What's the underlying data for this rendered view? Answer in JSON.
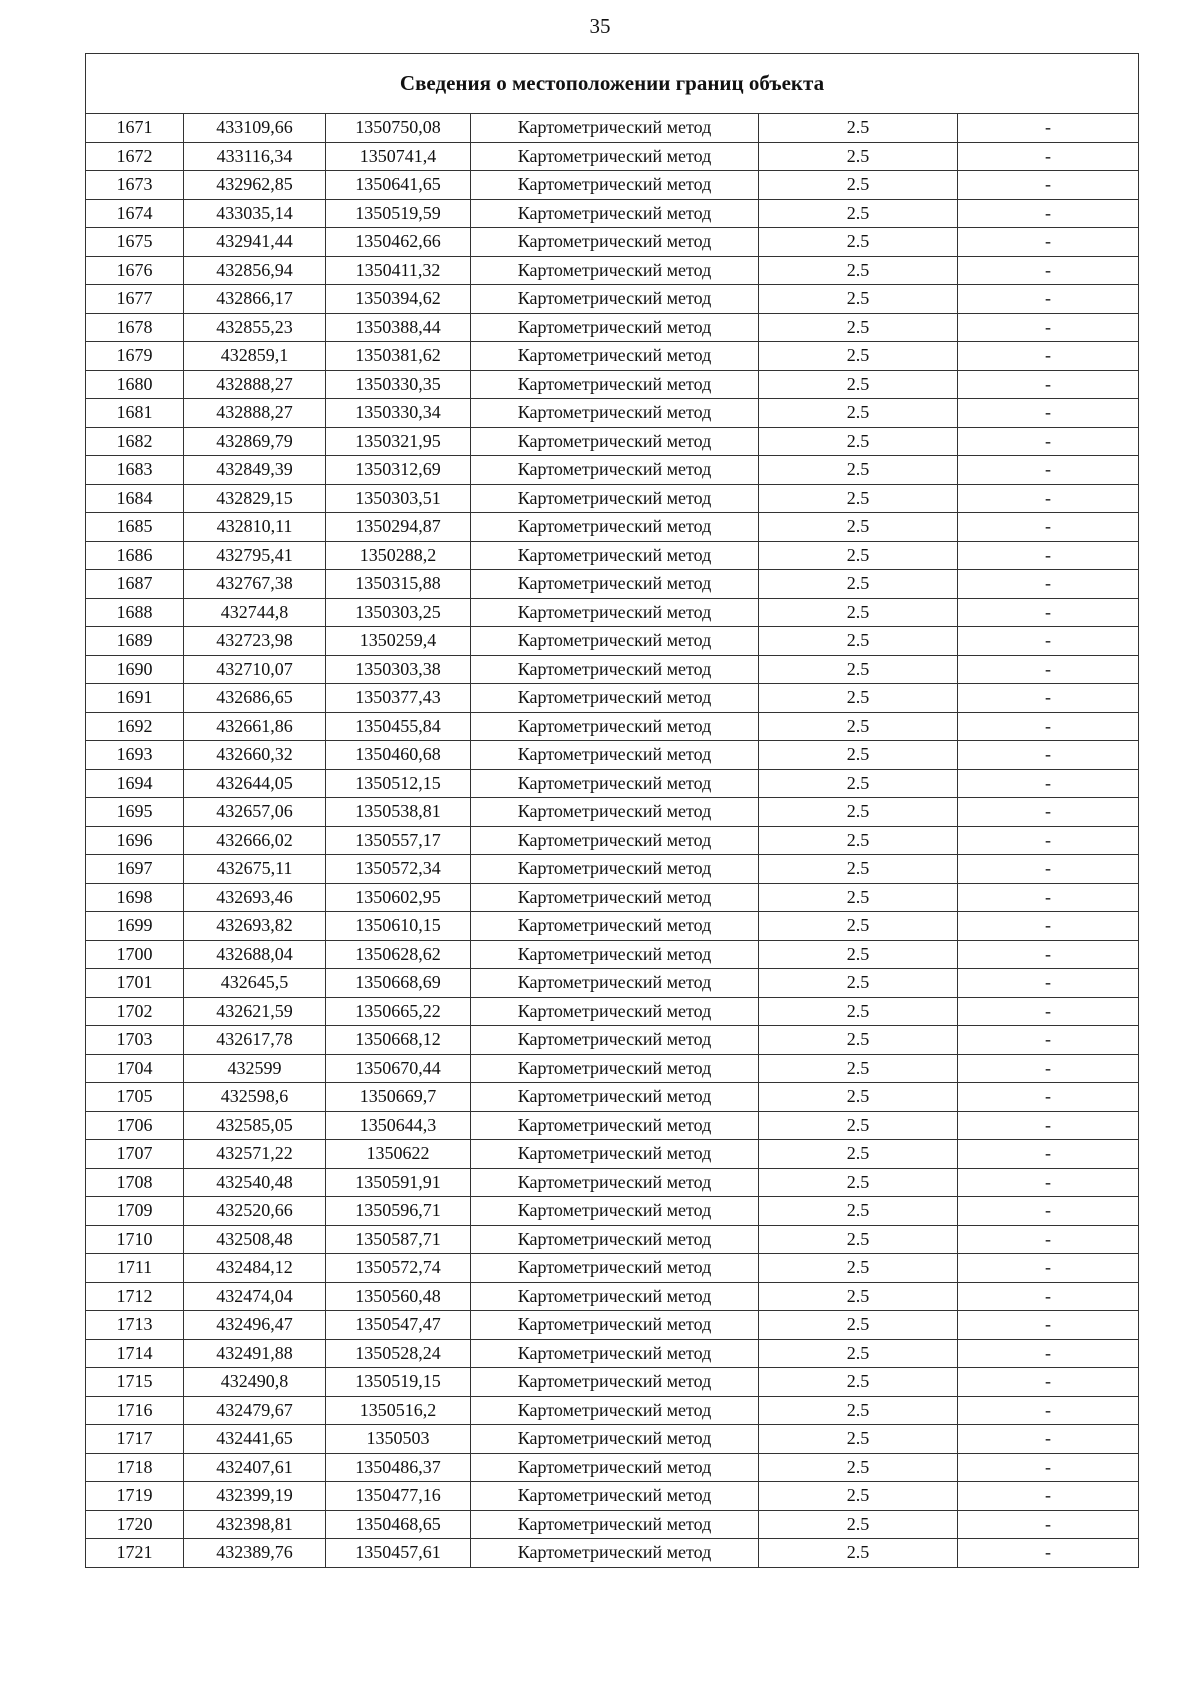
{
  "page_number": "35",
  "table": {
    "title": "Сведения о местоположении границ объекта",
    "rows": [
      [
        "1671",
        "433109,66",
        "1350750,08",
        "Картометрический метод",
        "2.5",
        "-"
      ],
      [
        "1672",
        "433116,34",
        "1350741,4",
        "Картометрический метод",
        "2.5",
        "-"
      ],
      [
        "1673",
        "432962,85",
        "1350641,65",
        "Картометрический метод",
        "2.5",
        "-"
      ],
      [
        "1674",
        "433035,14",
        "1350519,59",
        "Картометрический метод",
        "2.5",
        "-"
      ],
      [
        "1675",
        "432941,44",
        "1350462,66",
        "Картометрический метод",
        "2.5",
        "-"
      ],
      [
        "1676",
        "432856,94",
        "1350411,32",
        "Картометрический метод",
        "2.5",
        "-"
      ],
      [
        "1677",
        "432866,17",
        "1350394,62",
        "Картометрический метод",
        "2.5",
        "-"
      ],
      [
        "1678",
        "432855,23",
        "1350388,44",
        "Картометрический метод",
        "2.5",
        "-"
      ],
      [
        "1679",
        "432859,1",
        "1350381,62",
        "Картометрический метод",
        "2.5",
        "-"
      ],
      [
        "1680",
        "432888,27",
        "1350330,35",
        "Картометрический метод",
        "2.5",
        "-"
      ],
      [
        "1681",
        "432888,27",
        "1350330,34",
        "Картометрический метод",
        "2.5",
        "-"
      ],
      [
        "1682",
        "432869,79",
        "1350321,95",
        "Картометрический метод",
        "2.5",
        "-"
      ],
      [
        "1683",
        "432849,39",
        "1350312,69",
        "Картометрический метод",
        "2.5",
        "-"
      ],
      [
        "1684",
        "432829,15",
        "1350303,51",
        "Картометрический метод",
        "2.5",
        "-"
      ],
      [
        "1685",
        "432810,11",
        "1350294,87",
        "Картометрический метод",
        "2.5",
        "-"
      ],
      [
        "1686",
        "432795,41",
        "1350288,2",
        "Картометрический метод",
        "2.5",
        "-"
      ],
      [
        "1687",
        "432767,38",
        "1350315,88",
        "Картометрический метод",
        "2.5",
        "-"
      ],
      [
        "1688",
        "432744,8",
        "1350303,25",
        "Картометрический метод",
        "2.5",
        "-"
      ],
      [
        "1689",
        "432723,98",
        "1350259,4",
        "Картометрический метод",
        "2.5",
        "-"
      ],
      [
        "1690",
        "432710,07",
        "1350303,38",
        "Картометрический метод",
        "2.5",
        "-"
      ],
      [
        "1691",
        "432686,65",
        "1350377,43",
        "Картометрический метод",
        "2.5",
        "-"
      ],
      [
        "1692",
        "432661,86",
        "1350455,84",
        "Картометрический метод",
        "2.5",
        "-"
      ],
      [
        "1693",
        "432660,32",
        "1350460,68",
        "Картометрический метод",
        "2.5",
        "-"
      ],
      [
        "1694",
        "432644,05",
        "1350512,15",
        "Картометрический метод",
        "2.5",
        "-"
      ],
      [
        "1695",
        "432657,06",
        "1350538,81",
        "Картометрический метод",
        "2.5",
        "-"
      ],
      [
        "1696",
        "432666,02",
        "1350557,17",
        "Картометрический метод",
        "2.5",
        "-"
      ],
      [
        "1697",
        "432675,11",
        "1350572,34",
        "Картометрический метод",
        "2.5",
        "-"
      ],
      [
        "1698",
        "432693,46",
        "1350602,95",
        "Картометрический метод",
        "2.5",
        "-"
      ],
      [
        "1699",
        "432693,82",
        "1350610,15",
        "Картометрический метод",
        "2.5",
        "-"
      ],
      [
        "1700",
        "432688,04",
        "1350628,62",
        "Картометрический метод",
        "2.5",
        "-"
      ],
      [
        "1701",
        "432645,5",
        "1350668,69",
        "Картометрический метод",
        "2.5",
        "-"
      ],
      [
        "1702",
        "432621,59",
        "1350665,22",
        "Картометрический метод",
        "2.5",
        "-"
      ],
      [
        "1703",
        "432617,78",
        "1350668,12",
        "Картометрический метод",
        "2.5",
        "-"
      ],
      [
        "1704",
        "432599",
        "1350670,44",
        "Картометрический метод",
        "2.5",
        "-"
      ],
      [
        "1705",
        "432598,6",
        "1350669,7",
        "Картометрический метод",
        "2.5",
        "-"
      ],
      [
        "1706",
        "432585,05",
        "1350644,3",
        "Картометрический метод",
        "2.5",
        "-"
      ],
      [
        "1707",
        "432571,22",
        "1350622",
        "Картометрический метод",
        "2.5",
        "-"
      ],
      [
        "1708",
        "432540,48",
        "1350591,91",
        "Картометрический метод",
        "2.5",
        "-"
      ],
      [
        "1709",
        "432520,66",
        "1350596,71",
        "Картометрический метод",
        "2.5",
        "-"
      ],
      [
        "1710",
        "432508,48",
        "1350587,71",
        "Картометрический метод",
        "2.5",
        "-"
      ],
      [
        "1711",
        "432484,12",
        "1350572,74",
        "Картометрический метод",
        "2.5",
        "-"
      ],
      [
        "1712",
        "432474,04",
        "1350560,48",
        "Картометрический метод",
        "2.5",
        "-"
      ],
      [
        "1713",
        "432496,47",
        "1350547,47",
        "Картометрический метод",
        "2.5",
        "-"
      ],
      [
        "1714",
        "432491,88",
        "1350528,24",
        "Картометрический метод",
        "2.5",
        "-"
      ],
      [
        "1715",
        "432490,8",
        "1350519,15",
        "Картометрический метод",
        "2.5",
        "-"
      ],
      [
        "1716",
        "432479,67",
        "1350516,2",
        "Картометрический метод",
        "2.5",
        "-"
      ],
      [
        "1717",
        "432441,65",
        "1350503",
        "Картометрический метод",
        "2.5",
        "-"
      ],
      [
        "1718",
        "432407,61",
        "1350486,37",
        "Картометрический метод",
        "2.5",
        "-"
      ],
      [
        "1719",
        "432399,19",
        "1350477,16",
        "Картометрический метод",
        "2.5",
        "-"
      ],
      [
        "1720",
        "432398,81",
        "1350468,65",
        "Картометрический метод",
        "2.5",
        "-"
      ],
      [
        "1721",
        "432389,76",
        "1350457,61",
        "Картометрический метод",
        "2.5",
        "-"
      ]
    ]
  }
}
